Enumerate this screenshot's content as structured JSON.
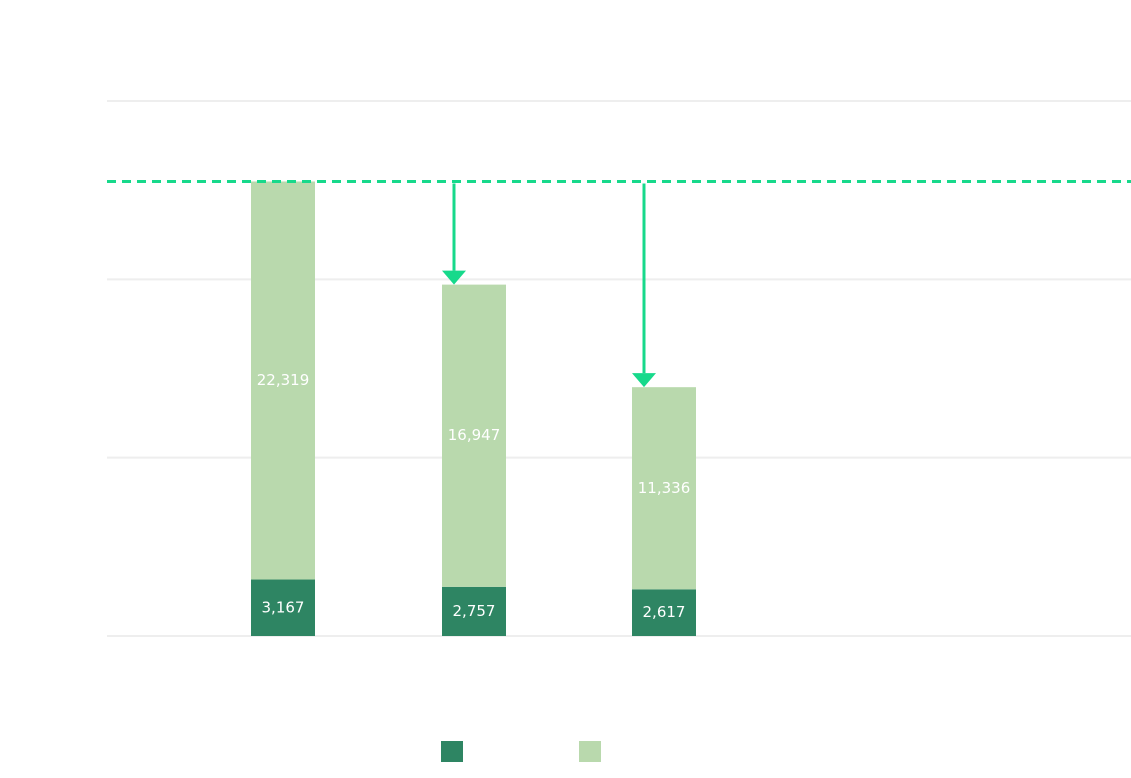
{
  "chart_data": {
    "type": "bar",
    "stacked": true,
    "categories": [
      "",
      "",
      ""
    ],
    "series": [
      {
        "values": [
          3167,
          2757,
          2617
        ],
        "color": "#2e8563"
      },
      {
        "values": [
          22319,
          16947,
          11336
        ],
        "color": "#b9d9ad"
      }
    ],
    "data_labels": {
      "series_0": [
        "3,167",
        "2,757",
        "2,617"
      ],
      "series_1": [
        "22,319",
        "16,947",
        "11,336"
      ]
    },
    "ylim": [
      0,
      30000
    ],
    "grid": true,
    "reference_line": {
      "value": 25486,
      "style": "dashed",
      "color": "#17d98b"
    },
    "arrows": [
      {
        "from_category": 1,
        "to_value": 19704,
        "color": "#17d98b"
      },
      {
        "from_category": 2,
        "to_value": 13953,
        "color": "#17d98b"
      }
    ],
    "legend": {
      "placement": "bottom"
    },
    "title": "",
    "xlabel": "",
    "ylabel": ""
  }
}
